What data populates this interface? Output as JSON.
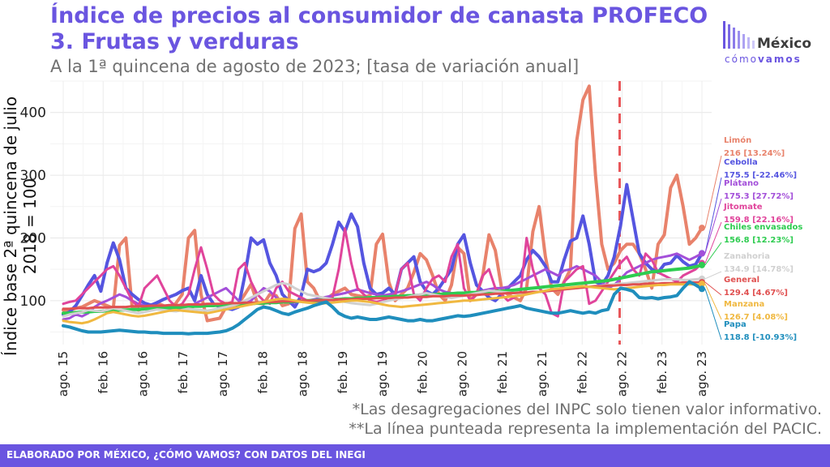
{
  "header": {
    "title_line1": "Índice de precios al consumidor de canasta PROFECO",
    "title_line2": "3. Frutas y verduras",
    "subtitle": "A la 1ª quincena de agosto de 2023; [tasa de variación anual]"
  },
  "logo": {
    "word": "México",
    "sub_prefix": "cómo",
    "sub_bold": "vamos"
  },
  "notes": {
    "note1": "*Las desagregaciones del INPC solo tienen valor informativo.",
    "note2": "**La línea punteada representa la implementación del PACIC."
  },
  "footer": {
    "text": "ELABORADO POR MÉXICO, ¿CÓMO VAMOS? CON DATOS DEL INEGI"
  },
  "chart_data": {
    "type": "line",
    "ylabel": "Índice base 2ª quincena de julio 2018 = 100",
    "ylim": [
      30,
      450
    ],
    "y_ticks": [
      100,
      200,
      300,
      400
    ],
    "x_ticks": [
      "ago. 15",
      "feb. 16",
      "ago. 16",
      "feb. 17",
      "ago. 17",
      "feb. 18",
      "ago. 18",
      "feb. 19",
      "ago. 19",
      "feb. 20",
      "ago. 20",
      "feb. 21",
      "ago. 21",
      "feb. 22",
      "ago. 22",
      "feb. 23",
      "ago. 23"
    ],
    "pacic_marker": "ago. 22",
    "grid": true,
    "series": [
      {
        "name": "Limón",
        "label_name": "Limón",
        "label_value": "216 [13.24%]",
        "color": "#e8826b",
        "width": 4,
        "values": [
          85,
          84,
          88,
          90,
          95,
          100,
          96,
          92,
          88,
          188,
          200,
          90,
          85,
          88,
          90,
          96,
          92,
          88,
          96,
          110,
          200,
          212,
          110,
          68,
          70,
          72,
          90,
          92,
          95,
          110,
          126,
          96,
          95,
          110,
          108,
          92,
          95,
          215,
          238,
          130,
          120,
          100,
          102,
          110,
          115,
          120,
          110,
          108,
          106,
          108,
          190,
          206,
          130,
          100,
          110,
          120,
          145,
          175,
          165,
          140,
          110,
          100,
          125,
          185,
          175,
          100,
          110,
          140,
          205,
          180,
          120,
          110,
          105,
          100,
          120,
          210,
          250,
          170,
          120,
          110,
          130,
          150,
          355,
          420,
          442,
          300,
          190,
          150,
          160,
          180,
          190,
          190,
          175,
          150,
          120,
          190,
          205,
          280,
          300,
          250,
          190,
          200,
          216
        ]
      },
      {
        "name": "Cebolla",
        "label_name": "Cebolla",
        "label_value": "175.5 [-22.46%]",
        "color": "#5555e0",
        "width": 4,
        "values": [
          78,
          82,
          92,
          108,
          125,
          140,
          115,
          160,
          192,
          165,
          120,
          110,
          102,
          96,
          93,
          97,
          102,
          106,
          110,
          116,
          120,
          100,
          140,
          110,
          95,
          90,
          88,
          86,
          90,
          140,
          200,
          190,
          197,
          160,
          140,
          110,
          100,
          90,
          108,
          150,
          146,
          150,
          160,
          190,
          225,
          210,
          238,
          218,
          160,
          120,
          110,
          112,
          120,
          110,
          150,
          160,
          170,
          130,
          115,
          110,
          120,
          135,
          150,
          190,
          205,
          160,
          125,
          115,
          105,
          100,
          110,
          120,
          130,
          140,
          165,
          180,
          170,
          155,
          130,
          130,
          165,
          195,
          200,
          235,
          190,
          130,
          125,
          140,
          170,
          220,
          285,
          230,
          175,
          160,
          150,
          145,
          158,
          160,
          172,
          162,
          155,
          158,
          175.5
        ]
      },
      {
        "name": "Plátano",
        "label_name": "Plátano",
        "label_value": "175.3 [27.72%]",
        "color": "#a34fd9",
        "width": 3,
        "values": [
          70,
          72,
          78,
          75,
          80,
          90,
          96,
          100,
          105,
          110,
          106,
          100,
          95,
          92,
          90,
          88,
          86,
          85,
          84,
          88,
          90,
          95,
          100,
          105,
          110,
          115,
          120,
          110,
          100,
          95,
          100,
          110,
          120,
          115,
          105,
          100,
          98,
          97,
          99,
          100,
          102,
          104,
          106,
          108,
          110,
          112,
          115,
          118,
          115,
          112,
          110,
          108,
          110,
          112,
          115,
          118,
          122,
          126,
          130,
          125,
          118,
          114,
          112,
          110,
          110,
          112,
          114,
          116,
          118,
          120,
          120,
          122,
          125,
          130,
          135,
          140,
          145,
          150,
          145,
          140,
          148,
          150,
          155,
          150,
          145,
          140,
          130,
          120,
          125,
          135,
          145,
          150,
          155,
          160,
          165,
          168,
          170,
          172,
          175,
          170,
          165,
          170,
          175.3
        ]
      },
      {
        "name": "Jitomate",
        "label_name": "Jitomate",
        "label_value": "159.8 [22.16%]",
        "color": "#e0449b",
        "width": 3,
        "values": [
          95,
          98,
          100,
          110,
          120,
          130,
          140,
          150,
          155,
          140,
          120,
          100,
          90,
          120,
          130,
          140,
          120,
          100,
          90,
          95,
          110,
          150,
          185,
          150,
          110,
          100,
          95,
          98,
          150,
          160,
          130,
          110,
          100,
          95,
          120,
          130,
          115,
          110,
          105,
          100,
          98,
          97,
          100,
          105,
          150,
          215,
          160,
          120,
          110,
          100,
          98,
          100,
          105,
          110,
          150,
          160,
          110,
          100,
          120,
          135,
          140,
          130,
          170,
          190,
          120,
          100,
          110,
          140,
          150,
          120,
          110,
          100,
          105,
          110,
          200,
          150,
          120,
          110,
          80,
          75,
          130,
          140,
          150,
          155,
          95,
          100,
          115,
          130,
          145,
          160,
          170,
          150,
          140,
          175,
          165,
          145,
          140,
          135,
          130,
          140,
          145,
          150,
          159.8
        ]
      },
      {
        "name": "Chiles envasados",
        "label_name": "Chiles envasados",
        "label_value": "156.8 [12.23%]",
        "color": "#2ecc50",
        "width": 4,
        "values": [
          80,
          80,
          81,
          82,
          82,
          83,
          83,
          84,
          84,
          85,
          85,
          86,
          86,
          87,
          87,
          88,
          88,
          89,
          89,
          90,
          90,
          91,
          91,
          92,
          92,
          93,
          93,
          94,
          94,
          95,
          95,
          96,
          96,
          97,
          97,
          98,
          98,
          99,
          99,
          100,
          100,
          101,
          101,
          102,
          102,
          103,
          103,
          104,
          104,
          105,
          105,
          106,
          106,
          107,
          107,
          108,
          108,
          109,
          109,
          110,
          110,
          111,
          111,
          112,
          112,
          113,
          113,
          114,
          114,
          115,
          115,
          116,
          117,
          118,
          119,
          120,
          121,
          122,
          123,
          124,
          125,
          126,
          127,
          128,
          129,
          130,
          131,
          132,
          134,
          136,
          138,
          140,
          142,
          144,
          146,
          147,
          148,
          149,
          150,
          151,
          152,
          154,
          156.8
        ]
      },
      {
        "name": "Zanahoria",
        "label_name": "Zanahoria",
        "label_value": "134.9 [14.78%]",
        "color": "#d0d0d0",
        "width": 3,
        "values": [
          75,
          78,
          80,
          82,
          85,
          84,
          83,
          85,
          88,
          86,
          84,
          82,
          80,
          82,
          84,
          86,
          85,
          84,
          83,
          85,
          87,
          86,
          85,
          84,
          86,
          88,
          90,
          92,
          95,
          100,
          105,
          110,
          115,
          120,
          125,
          128,
          126,
          120,
          115,
          110,
          108,
          106,
          104,
          102,
          100,
          98,
          96,
          95,
          94,
          93,
          95,
          98,
          100,
          102,
          104,
          106,
          108,
          110,
          112,
          110,
          108,
          106,
          104,
          106,
          108,
          110,
          112,
          114,
          116,
          115,
          114,
          113,
          112,
          111,
          112,
          113,
          114,
          115,
          116,
          117,
          118,
          119,
          120,
          121,
          122,
          123,
          124,
          125,
          126,
          127,
          128,
          129,
          130,
          131,
          132,
          133,
          134,
          134,
          134,
          133,
          133,
          134,
          134.9
        ]
      },
      {
        "name": "General",
        "label_name": "General",
        "label_value": "129.4 [4.67%]",
        "color": "#e05050",
        "width": 3,
        "values": [
          87,
          87,
          88,
          88,
          88,
          89,
          89,
          89,
          90,
          90,
          90,
          91,
          91,
          91,
          92,
          92,
          92,
          93,
          93,
          93,
          94,
          94,
          94,
          95,
          95,
          95,
          96,
          96,
          96,
          97,
          97,
          97,
          98,
          98,
          98,
          99,
          99,
          99,
          100,
          100,
          100,
          101,
          101,
          101,
          102,
          102,
          102,
          103,
          103,
          103,
          104,
          104,
          104,
          105,
          105,
          105,
          106,
          106,
          106,
          107,
          107,
          107,
          108,
          108,
          108,
          109,
          109,
          110,
          110,
          111,
          111,
          112,
          112,
          113,
          113,
          114,
          114,
          115,
          116,
          117,
          118,
          119,
          120,
          121,
          122,
          123,
          123,
          124,
          124,
          125,
          125,
          126,
          126,
          127,
          127,
          127,
          128,
          128,
          128,
          129,
          129,
          129,
          129.4
        ]
      },
      {
        "name": "Manzana",
        "label_name": "Manzana",
        "label_value": "126.7 [4.08%]",
        "color": "#f0b840",
        "width": 3,
        "values": [
          68,
          66,
          65,
          64,
          66,
          70,
          75,
          80,
          82,
          80,
          78,
          76,
          75,
          76,
          78,
          80,
          82,
          84,
          85,
          84,
          83,
          82,
          81,
          80,
          82,
          84,
          86,
          88,
          90,
          92,
          94,
          96,
          98,
          100,
          102,
          103,
          102,
          100,
          98,
          97,
          96,
          95,
          96,
          97,
          98,
          99,
          100,
          100,
          99,
          98,
          96,
          94,
          92,
          91,
          90,
          91,
          92,
          93,
          94,
          95,
          96,
          97,
          98,
          99,
          100,
          100,
          101,
          102,
          103,
          104,
          105,
          106,
          107,
          108,
          110,
          112,
          114,
          116,
          118,
          119,
          120,
          121,
          122,
          123,
          122,
          121,
          120,
          119,
          118,
          119,
          120,
          121,
          122,
          123,
          124,
          125,
          125,
          126,
          126,
          126,
          126,
          126,
          126.7
        ]
      },
      {
        "name": "Papa",
        "label_name": "Papa",
        "label_value": "118.8 [-10.93%]",
        "color": "#1f8ebd",
        "width": 4,
        "values": [
          60,
          58,
          55,
          52,
          50,
          50,
          50,
          51,
          52,
          53,
          52,
          51,
          50,
          50,
          49,
          49,
          48,
          48,
          48,
          48,
          47,
          48,
          48,
          48,
          49,
          50,
          52,
          56,
          62,
          70,
          78,
          86,
          90,
          88,
          84,
          80,
          78,
          82,
          85,
          88,
          92,
          95,
          98,
          90,
          80,
          75,
          72,
          74,
          72,
          70,
          70,
          72,
          74,
          72,
          70,
          68,
          68,
          70,
          68,
          68,
          70,
          72,
          74,
          76,
          75,
          76,
          78,
          80,
          82,
          84,
          86,
          88,
          90,
          92,
          88,
          86,
          84,
          82,
          80,
          80,
          82,
          84,
          82,
          80,
          82,
          80,
          84,
          86,
          110,
          120,
          118,
          115,
          105,
          104,
          105,
          103,
          105,
          106,
          108,
          120,
          130,
          125,
          118.8
        ]
      }
    ]
  }
}
